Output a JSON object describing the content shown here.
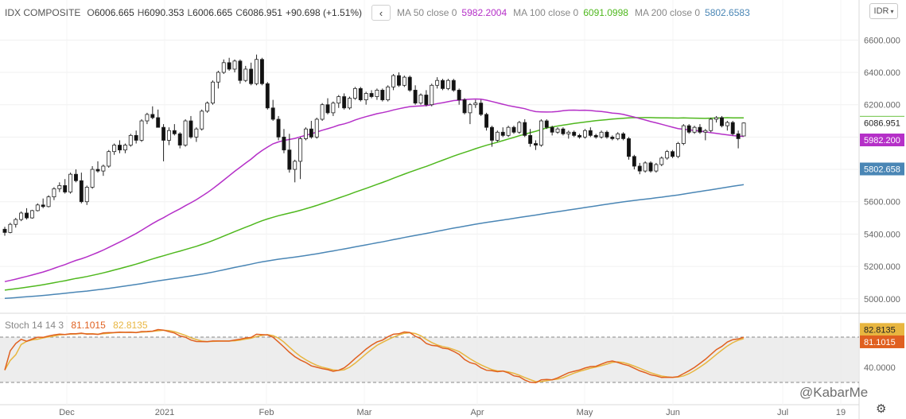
{
  "header": {
    "symbol": "IDX COMPOSITE",
    "ohlc": [
      {
        "key": "O",
        "value": "6006.665"
      },
      {
        "key": "H",
        "value": "6090.353"
      },
      {
        "key": "L",
        "value": "6006.665"
      },
      {
        "key": "C",
        "value": "6086.951"
      }
    ],
    "change": "+90.698 (+1.51%)",
    "collapse_icon": "chevron-left-icon",
    "ma": [
      {
        "label": "MA 50 close 0",
        "value": "5982.2004",
        "color": "#b530c8"
      },
      {
        "label": "MA 100 close 0",
        "value": "6091.0998",
        "color": "#4fb81e"
      },
      {
        "label": "MA 200 close 0",
        "value": "5802.6583",
        "color": "#4a86b5"
      }
    ]
  },
  "currency_button": "IDR",
  "stoch_legend": {
    "label": "Stoch 14 14 3",
    "k_value": "81.1015",
    "d_value": "82.8135",
    "k_color": "#e06020",
    "d_color": "#e8b640"
  },
  "watermark": "@KabarMe",
  "settings_icon": "gear-icon",
  "chart_data": [
    {
      "type": "candlestick",
      "title": "IDX COMPOSITE",
      "price_axis_ticks": [
        "6600.000",
        "6400.000",
        "6200.000",
        "6000.000",
        "5800.000",
        "5600.000",
        "5400.000",
        "5200.000",
        "5000.000"
      ],
      "time_axis_ticks": [
        "Dec",
        "2021",
        "Feb",
        "Mar",
        "Apr",
        "May",
        "Jun",
        "Jul",
        "19"
      ],
      "ylim": [
        4930,
        6700
      ],
      "grid": true,
      "price_labels": [
        {
          "value": 6091.1,
          "text": "6091.100",
          "color": "#4fb81e",
          "kind": "MA 100"
        },
        {
          "value": 6086.951,
          "text": "6086.951",
          "color": "#ffffff",
          "kind": "last close"
        },
        {
          "value": 5982.2,
          "text": "5982.200",
          "color": "#b530c8",
          "kind": "MA 50"
        },
        {
          "value": 5802.658,
          "text": "5802.658",
          "color": "#4a86b5",
          "kind": "MA 200"
        }
      ],
      "candles_ohlc": [
        [
          5430,
          5445,
          5390,
          5410
        ],
        [
          5410,
          5470,
          5405,
          5460
        ],
        [
          5460,
          5500,
          5440,
          5490
        ],
        [
          5490,
          5540,
          5480,
          5530
        ],
        [
          5530,
          5560,
          5490,
          5500
        ],
        [
          5500,
          5550,
          5495,
          5545
        ],
        [
          5545,
          5590,
          5540,
          5580
        ],
        [
          5580,
          5620,
          5560,
          5570
        ],
        [
          5570,
          5640,
          5565,
          5630
        ],
        [
          5630,
          5690,
          5610,
          5680
        ],
        [
          5680,
          5720,
          5660,
          5700
        ],
        [
          5700,
          5740,
          5650,
          5660
        ],
        [
          5660,
          5780,
          5650,
          5770
        ],
        [
          5770,
          5800,
          5720,
          5730
        ],
        [
          5730,
          5780,
          5590,
          5600
        ],
        [
          5600,
          5700,
          5580,
          5690
        ],
        [
          5690,
          5820,
          5680,
          5800
        ],
        [
          5800,
          5850,
          5780,
          5790
        ],
        [
          5790,
          5830,
          5760,
          5820
        ],
        [
          5820,
          5920,
          5810,
          5910
        ],
        [
          5910,
          5960,
          5890,
          5950
        ],
        [
          5950,
          5980,
          5900,
          5920
        ],
        [
          5920,
          5960,
          5900,
          5950
        ],
        [
          5950,
          6020,
          5940,
          6010
        ],
        [
          6010,
          6040,
          5960,
          5980
        ],
        [
          5980,
          6110,
          5970,
          6100
        ],
        [
          6100,
          6150,
          6080,
          6140
        ],
        [
          6140,
          6190,
          6110,
          6120
        ],
        [
          6120,
          6170,
          6060,
          6060
        ],
        [
          6060,
          6080,
          5850,
          5980
        ],
        [
          5980,
          6060,
          5950,
          6040
        ],
        [
          6040,
          6080,
          6010,
          6020
        ],
        [
          6020,
          6030,
          5930,
          5950
        ],
        [
          5950,
          6110,
          5940,
          6100
        ],
        [
          6100,
          6130,
          5990,
          6000
        ],
        [
          6000,
          6060,
          5970,
          6050
        ],
        [
          6050,
          6170,
          6040,
          6160
        ],
        [
          6160,
          6220,
          6150,
          6210
        ],
        [
          6210,
          6350,
          6200,
          6340
        ],
        [
          6340,
          6410,
          6300,
          6400
        ],
        [
          6400,
          6480,
          6390,
          6460
        ],
        [
          6460,
          6490,
          6410,
          6420
        ],
        [
          6420,
          6480,
          6400,
          6470
        ],
        [
          6470,
          6480,
          6330,
          6350
        ],
        [
          6350,
          6440,
          6340,
          6420
        ],
        [
          6420,
          6460,
          6320,
          6330
        ],
        [
          6330,
          6510,
          6320,
          6480
        ],
        [
          6480,
          6490,
          6320,
          6330
        ],
        [
          6330,
          6340,
          6170,
          6180
        ],
        [
          6180,
          6230,
          6100,
          6110
        ],
        [
          6110,
          6130,
          5980,
          6000
        ],
        [
          6000,
          6050,
          5900,
          5920
        ],
        [
          5920,
          6020,
          5780,
          5800
        ],
        [
          5800,
          5860,
          5720,
          5850
        ],
        [
          5850,
          6000,
          5740,
          5990
        ],
        [
          5990,
          6060,
          5980,
          6050
        ],
        [
          6050,
          6100,
          5990,
          6000
        ],
        [
          6000,
          6120,
          5990,
          6110
        ],
        [
          6110,
          6210,
          6100,
          6200
        ],
        [
          6200,
          6240,
          6140,
          6150
        ],
        [
          6150,
          6220,
          6130,
          6210
        ],
        [
          6210,
          6260,
          6180,
          6250
        ],
        [
          6250,
          6270,
          6170,
          6180
        ],
        [
          6180,
          6250,
          6170,
          6240
        ],
        [
          6240,
          6310,
          6230,
          6300
        ],
        [
          6300,
          6310,
          6220,
          6230
        ],
        [
          6230,
          6280,
          6200,
          6270
        ],
        [
          6270,
          6290,
          6240,
          6250
        ],
        [
          6250,
          6300,
          6230,
          6290
        ],
        [
          6290,
          6300,
          6220,
          6230
        ],
        [
          6230,
          6320,
          6220,
          6310
        ],
        [
          6310,
          6390,
          6290,
          6380
        ],
        [
          6380,
          6400,
          6310,
          6320
        ],
        [
          6320,
          6380,
          6310,
          6370
        ],
        [
          6370,
          6380,
          6280,
          6290
        ],
        [
          6290,
          6320,
          6200,
          6210
        ],
        [
          6210,
          6270,
          6200,
          6260
        ],
        [
          6260,
          6290,
          6190,
          6200
        ],
        [
          6200,
          6330,
          6190,
          6320
        ],
        [
          6320,
          6370,
          6300,
          6350
        ],
        [
          6350,
          6360,
          6290,
          6300
        ],
        [
          6300,
          6360,
          6290,
          6350
        ],
        [
          6350,
          6360,
          6280,
          6290
        ],
        [
          6290,
          6300,
          6200,
          6230
        ],
        [
          6230,
          6240,
          6140,
          6150
        ],
        [
          6150,
          6210,
          6080,
          6200
        ],
        [
          6200,
          6230,
          6180,
          6210
        ],
        [
          6210,
          6230,
          6130,
          6140
        ],
        [
          6140,
          6150,
          6040,
          6060
        ],
        [
          6060,
          6070,
          5940,
          5980
        ],
        [
          5980,
          6040,
          5970,
          6030
        ],
        [
          6030,
          6060,
          6000,
          6010
        ],
        [
          6010,
          6070,
          6000,
          6060
        ],
        [
          6060,
          6070,
          6020,
          6030
        ],
        [
          6030,
          6100,
          6020,
          6090
        ],
        [
          6090,
          6110,
          6000,
          6010
        ],
        [
          6010,
          6050,
          5940,
          5960
        ],
        [
          5960,
          5980,
          5920,
          5950
        ],
        [
          5950,
          6110,
          5940,
          6100
        ],
        [
          6100,
          6110,
          6050,
          6060
        ],
        [
          6060,
          6070,
          6010,
          6030
        ],
        [
          6030,
          6060,
          6020,
          6050
        ],
        [
          6050,
          6060,
          6010,
          6020
        ],
        [
          6020,
          6040,
          5990,
          6030
        ],
        [
          6030,
          6040,
          6000,
          6010
        ],
        [
          6010,
          6020,
          5990,
          6000
        ],
        [
          6000,
          6050,
          5990,
          6040
        ],
        [
          6040,
          6060,
          6000,
          6010
        ],
        [
          6010,
          6020,
          5990,
          6000
        ],
        [
          6000,
          6040,
          5990,
          6030
        ],
        [
          6030,
          6040,
          5990,
          6000
        ],
        [
          6000,
          6010,
          5980,
          5990
        ],
        [
          5990,
          6030,
          5980,
          6020
        ],
        [
          6020,
          6030,
          5980,
          5990
        ],
        [
          5990,
          6000,
          5860,
          5880
        ],
        [
          5880,
          5890,
          5800,
          5820
        ],
        [
          5820,
          5840,
          5770,
          5790
        ],
        [
          5790,
          5850,
          5780,
          5840
        ],
        [
          5840,
          5850,
          5780,
          5790
        ],
        [
          5790,
          5840,
          5780,
          5830
        ],
        [
          5830,
          5880,
          5820,
          5870
        ],
        [
          5870,
          5920,
          5860,
          5910
        ],
        [
          5910,
          5920,
          5870,
          5880
        ],
        [
          5880,
          5970,
          5870,
          5960
        ],
        [
          5960,
          6080,
          5950,
          6070
        ],
        [
          6070,
          6080,
          6020,
          6030
        ],
        [
          6030,
          6070,
          6020,
          6060
        ],
        [
          6060,
          6080,
          6020,
          6030
        ],
        [
          6030,
          6050,
          5980,
          6040
        ],
        [
          6040,
          6120,
          6030,
          6110
        ],
        [
          6110,
          6130,
          6090,
          6120
        ],
        [
          6120,
          6130,
          6060,
          6070
        ],
        [
          6070,
          6100,
          6040,
          6090
        ],
        [
          6090,
          6100,
          6010,
          6020
        ],
        [
          6020,
          6040,
          5930,
          5990
        ],
        [
          6006.665,
          6090.353,
          6006.665,
          6086.951
        ]
      ]
    },
    {
      "type": "line",
      "title": "Stoch 14 14 3",
      "axis_ticks": [
        "80.0000",
        "40.0000"
      ],
      "ylim": [
        0,
        100
      ],
      "bands": [
        20,
        80
      ],
      "price_labels": [
        {
          "value": 82.8135,
          "text": "82.8135",
          "color": "#e8b640"
        },
        {
          "value": 81.1015,
          "text": "81.1015",
          "color": "#e06020"
        }
      ]
    }
  ]
}
